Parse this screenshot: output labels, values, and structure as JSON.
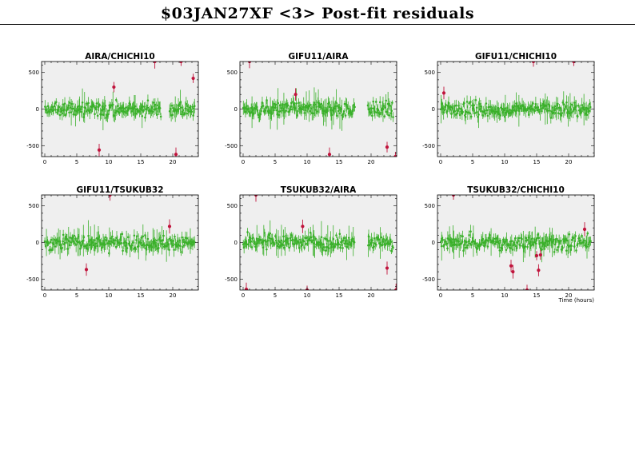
{
  "page": {
    "title": "$03JAN27XF <3> Post-fit residuals",
    "xlabel": "Time (hours)"
  },
  "colors": {
    "panel_bg": "#efefef",
    "good_points": "#3ab02a",
    "outlier_points": "#c0143c"
  },
  "chart_data": [
    {
      "type": "scatter",
      "title": "AIRA/CHICHI10",
      "xlim": [
        -0.5,
        24
      ],
      "ylim": [
        -650,
        650
      ],
      "xticks": [
        0,
        5,
        10,
        15,
        20
      ],
      "yticks": [
        -500,
        0,
        500
      ],
      "segments": [
        [
          0,
          18.2
        ],
        [
          19.5,
          23.5
        ]
      ],
      "outliers": [
        [
          8.5,
          -560
        ],
        [
          10.8,
          300
        ],
        [
          17.2,
          650
        ],
        [
          20.5,
          -620
        ],
        [
          21.3,
          650
        ],
        [
          23.2,
          420
        ]
      ]
    },
    {
      "type": "scatter",
      "title": "GIFU11/AIRA",
      "xlim": [
        -0.5,
        24
      ],
      "ylim": [
        -650,
        650
      ],
      "xticks": [
        0,
        5,
        10,
        15,
        20
      ],
      "yticks": [
        -500,
        0,
        500
      ],
      "segments": [
        [
          0,
          17.5
        ],
        [
          19.5,
          23.5
        ]
      ],
      "outliers": [
        [
          1.0,
          650
        ],
        [
          8.2,
          200
        ],
        [
          13.5,
          -620
        ],
        [
          22.5,
          -520
        ],
        [
          23.8,
          -650
        ]
      ]
    },
    {
      "type": "scatter",
      "title": "GIFU11/CHICHI10",
      "xlim": [
        -0.5,
        24
      ],
      "ylim": [
        -650,
        650
      ],
      "xticks": [
        0,
        5,
        10,
        15,
        20
      ],
      "yticks": [
        -500,
        0,
        500
      ],
      "segments": [
        [
          0,
          23.5
        ]
      ],
      "outliers": [
        [
          0.5,
          220
        ],
        [
          14.5,
          650
        ],
        [
          20.8,
          650
        ]
      ]
    },
    {
      "type": "scatter",
      "title": "GIFU11/TSUKUB32",
      "xlim": [
        -0.5,
        24
      ],
      "ylim": [
        -650,
        650
      ],
      "xticks": [
        0,
        5,
        10,
        15,
        20
      ],
      "yticks": [
        -500,
        0,
        500
      ],
      "segments": [
        [
          0,
          23.5
        ]
      ],
      "outliers": [
        [
          6.5,
          -370
        ],
        [
          10.2,
          650
        ],
        [
          19.5,
          220
        ]
      ]
    },
    {
      "type": "scatter",
      "title": "TSUKUB32/AIRA",
      "xlim": [
        -0.5,
        24
      ],
      "ylim": [
        -650,
        650
      ],
      "xticks": [
        0,
        5,
        10,
        15,
        20
      ],
      "yticks": [
        -500,
        0,
        500
      ],
      "segments": [
        [
          0,
          17.5
        ],
        [
          19.5,
          23.5
        ]
      ],
      "outliers": [
        [
          0.5,
          -640
        ],
        [
          2.0,
          650
        ],
        [
          9.3,
          220
        ],
        [
          10.0,
          -650
        ],
        [
          22.5,
          -350
        ],
        [
          23.9,
          -650
        ]
      ]
    },
    {
      "type": "scatter",
      "title": "TSUKUB32/CHICHI10",
      "xlim": [
        -0.5,
        24
      ],
      "ylim": [
        -650,
        650
      ],
      "xticks": [
        0,
        5,
        10,
        15,
        20
      ],
      "yticks": [
        -500,
        0,
        500
      ],
      "segments": [
        [
          0,
          23.5
        ]
      ],
      "outliers": [
        [
          2.0,
          650
        ],
        [
          11.0,
          -320
        ],
        [
          11.3,
          -400
        ],
        [
          13.5,
          -650
        ],
        [
          15.0,
          -180
        ],
        [
          15.3,
          -380
        ],
        [
          15.6,
          -170
        ],
        [
          22.5,
          180
        ]
      ]
    }
  ]
}
